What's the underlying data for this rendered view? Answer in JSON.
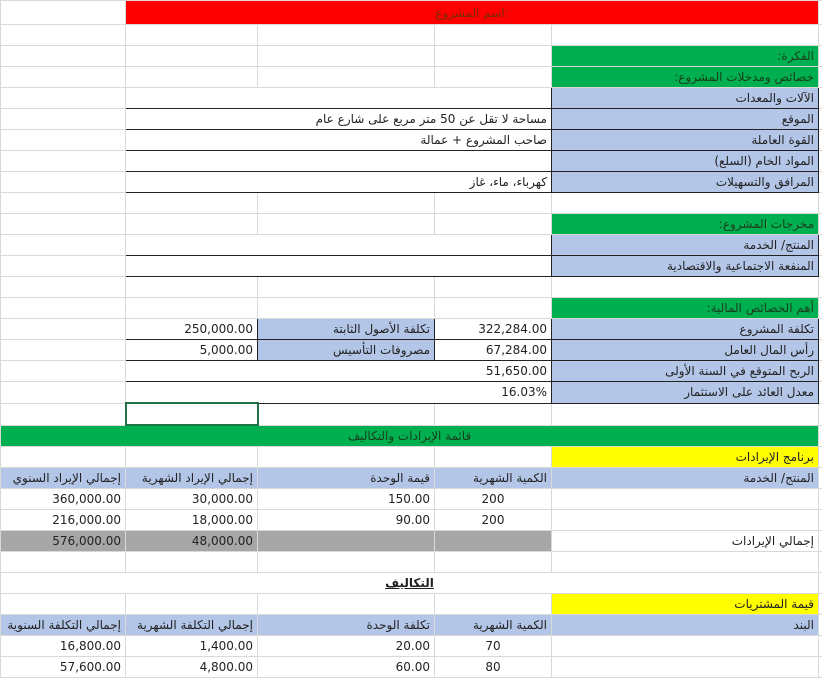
{
  "title": "اسم المشروع:",
  "idea": {
    "header": "الفكرة:",
    "inputs_header": "خصائص ومدخلات المشروع:",
    "rows": [
      {
        "label": "الآلات والمعدات",
        "value": ""
      },
      {
        "label": "الموقع",
        "value": "مساحة لا تقل عن 50 متر مربع على شارع عام"
      },
      {
        "label": "القوة العاملة",
        "value": "صاحب المشروع + عمالة"
      },
      {
        "label": "المواد الخام (السلع)",
        "value": ""
      },
      {
        "label": "المرافق والتسهيلات",
        "value": "كهرباء، ماء، غاز"
      }
    ]
  },
  "outputs": {
    "header": "مخرجات المشروع:",
    "rows": [
      {
        "label": "المنتج/ الخدمة"
      },
      {
        "label": "المنفعة الاجتماعية والاقتصادية"
      }
    ]
  },
  "financial": {
    "header": "أهم الخصائص المالية:",
    "rows": [
      {
        "label": "تكلفة المشروع",
        "value": "322,284.00",
        "sub_label": "تكلفة الأصول الثابتة",
        "sub_value": "250,000.00"
      },
      {
        "label": "رأس المال العامل",
        "value": "67,284.00",
        "sub_label": "مصروفات التأسيس",
        "sub_value": "5,000.00"
      },
      {
        "label": "الربح المتوقع في السنة الأولى",
        "value": "51,650.00"
      },
      {
        "label": "معدل العائد على الاستثمار",
        "value": "16.03%"
      }
    ]
  },
  "statement_title": "قائمة الإيرادات والتكاليف",
  "revenue": {
    "header": "برنامج الإيرادات",
    "columns": [
      "المنتج/ الخدمة",
      "الكمية الشهرية",
      "قيمة الوحدة",
      "إجمالي الإيراد الشهرية",
      "إجمالي الإيراد السنوي"
    ],
    "rows": [
      [
        "",
        "200",
        "150.00",
        "30,000.00",
        "360,000.00"
      ],
      [
        "",
        "200",
        "90.00",
        "18,000.00",
        "216,000.00"
      ]
    ],
    "total": {
      "label": "إجمالي الإيرادات",
      "monthly": "48,000.00",
      "annual": "576,000.00"
    }
  },
  "costs": {
    "title": "التكاليف",
    "header": "قيمة المشتريات",
    "columns": [
      "البند",
      "الكمية الشهرية",
      "تكلفة الوحدة",
      "إجمالي التكلفة الشهرية",
      "إجمالي التكلفة السنوية"
    ],
    "rows": [
      [
        "",
        "70",
        "20.00",
        "1,400.00",
        "16,800.00"
      ],
      [
        "",
        "80",
        "60.00",
        "4,800.00",
        "57,600.00"
      ]
    ]
  }
}
